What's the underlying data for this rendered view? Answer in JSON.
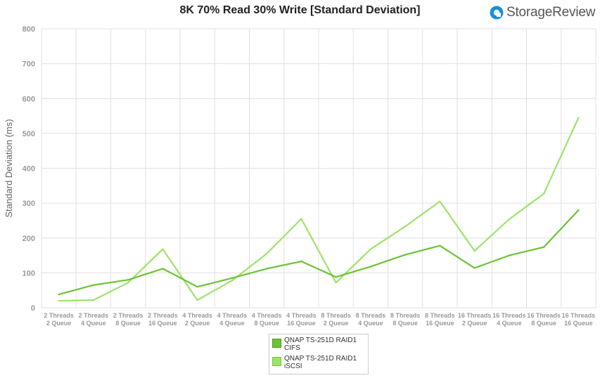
{
  "header": {
    "title": "8K 70% Read 30% Write [Standard Deviation]",
    "logo_text": "StorageReview"
  },
  "colors": {
    "series_0": "#6cc235",
    "series_1": "#9de36a",
    "grid": "#e0e0e0",
    "tick_text": "#999999",
    "logo_icon": "#1a8fd8"
  },
  "legend": {
    "placement": "bottom-center",
    "items": [
      {
        "label": "QNAP TS-251D RAID1\nCIFS"
      },
      {
        "label": "QNAP TS-251D RAID1\niSCSI"
      }
    ]
  },
  "chart_data": {
    "type": "line",
    "title": "8K 70% Read 30% Write [Standard Deviation]",
    "xlabel": "",
    "ylabel": "Standard Deviation (ms)",
    "ylim": [
      0,
      800
    ],
    "yticks": [
      0,
      100,
      200,
      300,
      400,
      500,
      600,
      700,
      800
    ],
    "grid": true,
    "categories": [
      "2 Threads\n2 Queue",
      "2 Threads\n4 Queue",
      "2 Threads\n8 Queue",
      "2 Threads\n16 Queue",
      "4 Threads\n2 Queue",
      "4 Threads\n4 Queue",
      "4 Threads\n8 Queue",
      "4 Threads\n16 Queue",
      "8 Threads\n2 Queue",
      "8 Threads\n4 Queue",
      "8 Threads\n8 Queue",
      "8 Threads\n16 Queue",
      "16 Threads\n2 Queue",
      "16 Threads\n4 Queue",
      "16 Threads\n8 Queue",
      "16 Threads\n16 Queue"
    ],
    "series": [
      {
        "name": "QNAP TS-251D RAID1\nCIFS",
        "values": [
          38,
          65,
          80,
          112,
          60,
          85,
          112,
          133,
          88,
          118,
          152,
          178,
          114,
          150,
          174,
          280
        ]
      },
      {
        "name": "QNAP TS-251D RAID1\niSCSI",
        "values": [
          20,
          22,
          72,
          168,
          22,
          78,
          155,
          255,
          72,
          168,
          233,
          305,
          163,
          254,
          327,
          545
        ]
      }
    ]
  }
}
